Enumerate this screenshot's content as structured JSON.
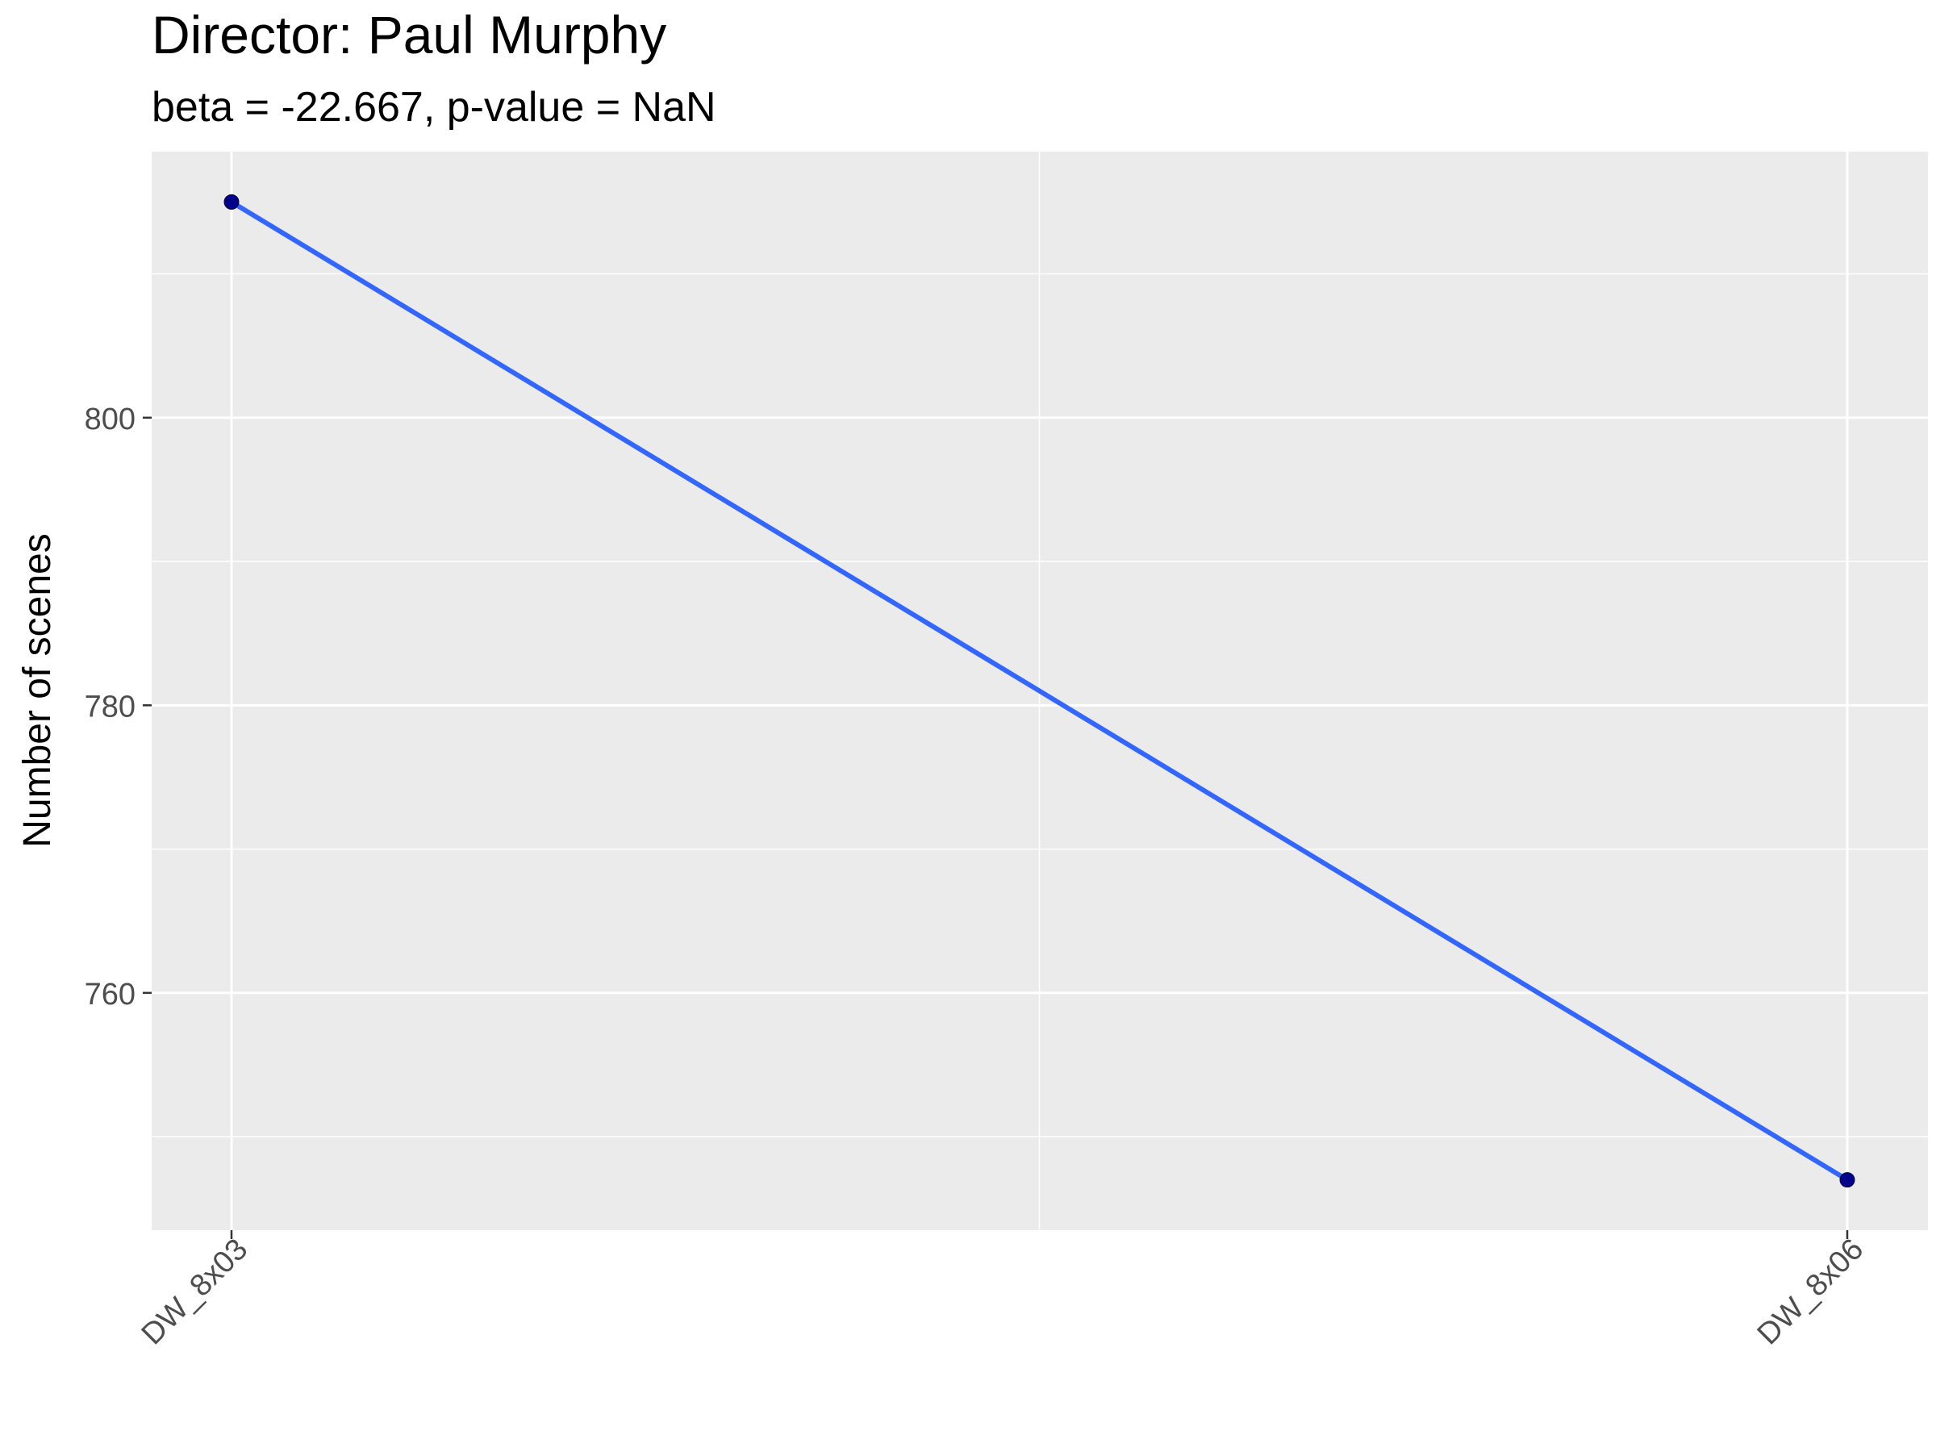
{
  "chart_data": {
    "type": "line",
    "title": "Director: Paul Murphy",
    "subtitle": "beta = -22.667, p-value = NaN",
    "xlabel": "",
    "ylabel": "Number of scenes",
    "categories": [
      "DW_8x03",
      "DW_8x06"
    ],
    "series": [
      {
        "points": [
          {
            "x": "DW_8x03",
            "y": 815
          },
          {
            "x": "DW_8x06",
            "y": 747
          }
        ]
      }
    ],
    "trend_line": {
      "from": {
        "x": "DW_8x03",
        "y": 815
      },
      "to": {
        "x": "DW_8x06",
        "y": 747
      }
    },
    "ylim": [
      743.5,
      818.5
    ],
    "y_ticks": [
      760,
      780,
      800
    ],
    "y_minor_ticks": [
      750,
      770,
      790,
      810
    ],
    "grid": true,
    "colors": {
      "panel_background": "#ebebeb",
      "grid_line": "#ffffff",
      "point": "#00008b",
      "trend_line": "#3366ff"
    }
  }
}
